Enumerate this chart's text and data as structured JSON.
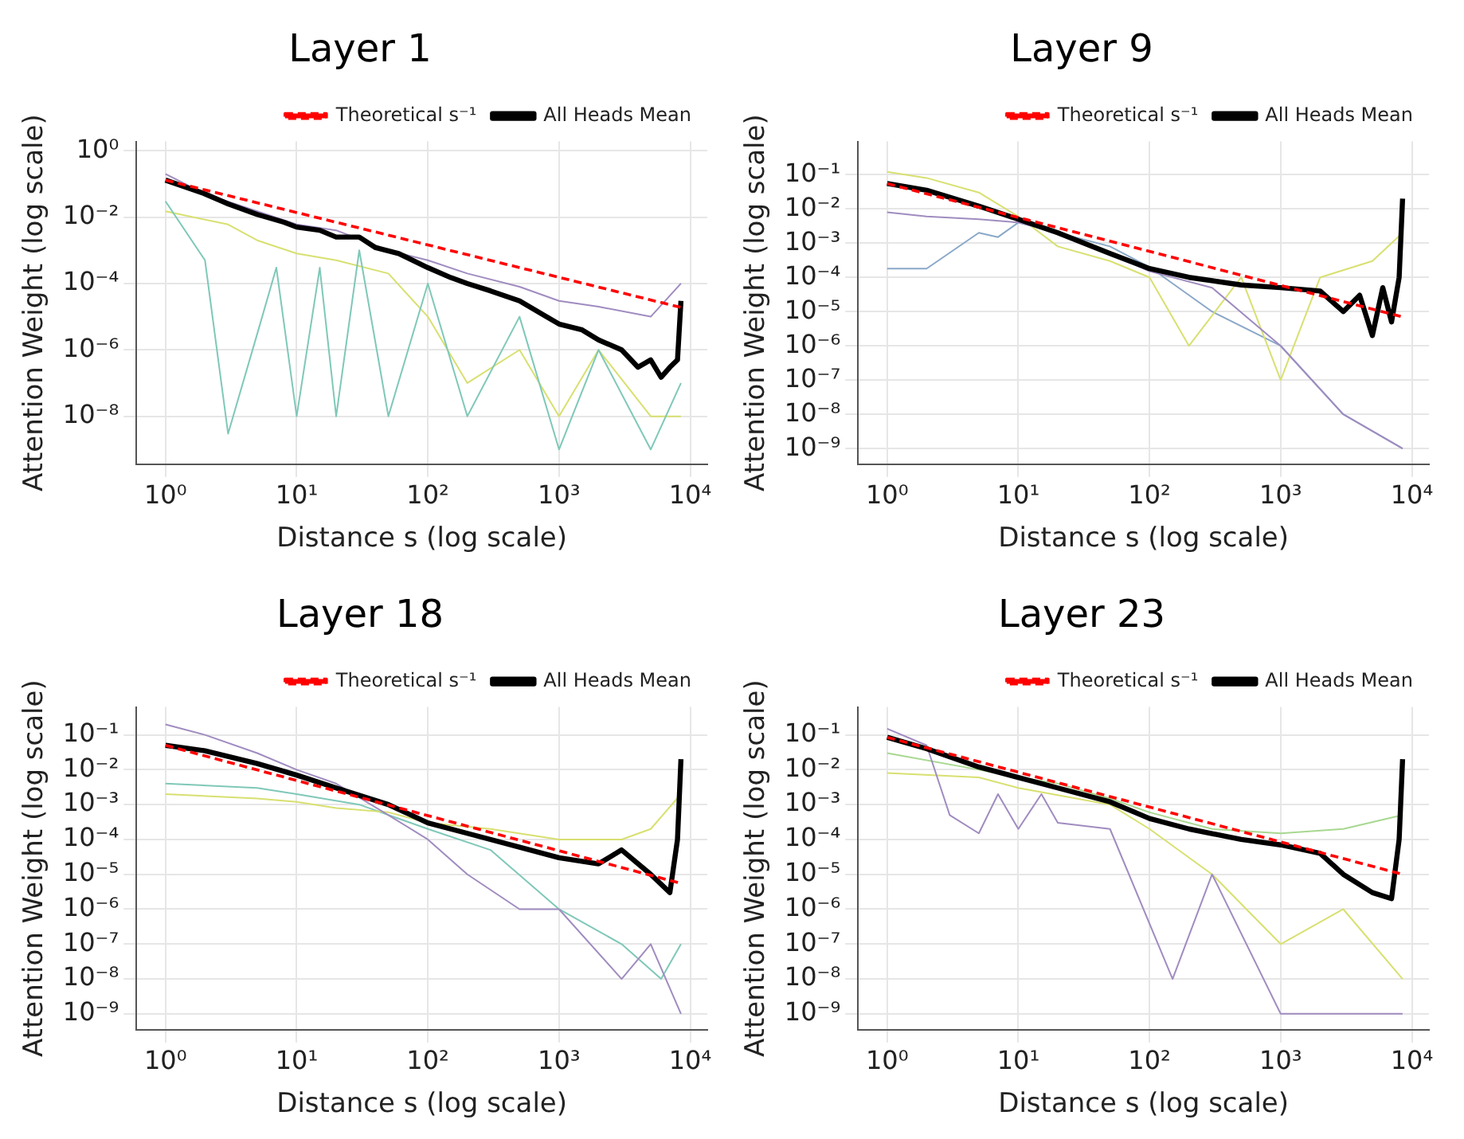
{
  "chart_data": [
    {
      "type": "line",
      "title": "Layer 1",
      "xlabel": "Distance s (log scale)",
      "ylabel": "Attention Weight (log scale)",
      "log": "xy",
      "grid": true,
      "legend": "top right",
      "xlim": [
        0.63,
        13500
      ],
      "xticks": [
        {
          "value": 1,
          "label": "10⁰"
        },
        {
          "value": 10,
          "label": "10¹"
        },
        {
          "value": 100,
          "label": "10²"
        },
        {
          "value": 1000,
          "label": "10³"
        },
        {
          "value": 10000,
          "label": "10⁴"
        }
      ],
      "ylim": [
        3.6e-10,
        1.9
      ],
      "yticks": [
        {
          "value": 1,
          "label": "10⁰"
        },
        {
          "value": 0.01,
          "label": "10⁻²"
        },
        {
          "value": 0.0001,
          "label": "10⁻⁴"
        },
        {
          "value": 1e-06,
          "label": "10⁻⁶"
        },
        {
          "value": 1e-08,
          "label": "10⁻⁸"
        }
      ],
      "series": [
        {
          "color": "#7fc8b8",
          "x": [
            1,
            2,
            3,
            5,
            7,
            10,
            15,
            20,
            30,
            50,
            100,
            200,
            500,
            1000,
            2000,
            5000,
            8500
          ],
          "values": [
            0.03,
            0.0005,
            3e-09,
            3e-06,
            0.0003,
            1e-08,
            0.0003,
            1e-08,
            0.001,
            1e-08,
            0.0001,
            1e-08,
            1e-05,
            1e-09,
            1e-06,
            1e-09,
            1e-07
          ]
        },
        {
          "color": "#d8e070",
          "x": [
            1,
            3,
            5,
            10,
            20,
            50,
            100,
            200,
            500,
            1000,
            2000,
            5000,
            8500
          ],
          "values": [
            0.015,
            0.006,
            0.002,
            0.0008,
            0.0005,
            0.0002,
            1e-05,
            1e-07,
            1e-06,
            1e-08,
            1e-06,
            1e-08,
            1e-08
          ]
        },
        {
          "color": "#a08cc0",
          "x": [
            1,
            2,
            5,
            10,
            20,
            50,
            100,
            200,
            500,
            1000,
            2000,
            5000,
            8500
          ],
          "values": [
            0.2,
            0.05,
            0.015,
            0.006,
            0.004,
            0.001,
            0.0005,
            0.0002,
            8e-05,
            3e-05,
            2e-05,
            1e-05,
            0.0001
          ]
        },
        {
          "name": "All Heads Mean",
          "color": "#000000",
          "line_style": "solid",
          "x": [
            1,
            2,
            3,
            5,
            8,
            10,
            15,
            20,
            30,
            40,
            60,
            100,
            150,
            200,
            300,
            500,
            800,
            1000,
            1500,
            2000,
            3000,
            4000,
            5000,
            6000,
            7000,
            8000,
            8500
          ],
          "values": [
            0.13,
            0.05,
            0.025,
            0.012,
            0.007,
            0.005,
            0.004,
            0.0025,
            0.0025,
            0.0012,
            0.0008,
            0.0003,
            0.00015,
            0.0001,
            6e-05,
            3e-05,
            1e-05,
            6e-06,
            4e-06,
            2e-06,
            1e-06,
            3e-07,
            5e-07,
            1.5e-07,
            3e-07,
            5e-07,
            3e-05
          ]
        },
        {
          "name": "Theoretical s⁻¹",
          "color": "#ff0000",
          "line_style": "dashed",
          "x": [
            1,
            8500
          ],
          "values": [
            0.13,
            1.9e-05
          ]
        }
      ]
    },
    {
      "type": "line",
      "title": "Layer 9",
      "xlabel": "Distance s (log scale)",
      "ylabel": "Attention Weight (log scale)",
      "log": "xy",
      "grid": true,
      "legend": "top right",
      "xlim": [
        0.63,
        13500
      ],
      "xticks": [
        {
          "value": 1,
          "label": "10⁰"
        },
        {
          "value": 10,
          "label": "10¹"
        },
        {
          "value": 100,
          "label": "10²"
        },
        {
          "value": 1000,
          "label": "10³"
        },
        {
          "value": 10000,
          "label": "10⁴"
        }
      ],
      "ylim": [
        3.5e-10,
        0.93
      ],
      "yticks": [
        {
          "value": 0.1,
          "label": "10⁻¹"
        },
        {
          "value": 0.01,
          "label": "10⁻²"
        },
        {
          "value": 0.001,
          "label": "10⁻³"
        },
        {
          "value": 0.0001,
          "label": "10⁻⁴"
        },
        {
          "value": 1e-05,
          "label": "10⁻⁵"
        },
        {
          "value": 1e-06,
          "label": "10⁻⁶"
        },
        {
          "value": 1e-07,
          "label": "10⁻⁷"
        },
        {
          "value": 1e-08,
          "label": "10⁻⁸"
        },
        {
          "value": 1e-09,
          "label": "10⁻⁹"
        }
      ],
      "series": [
        {
          "color": "#a08cc0",
          "x": [
            1,
            2,
            5,
            10,
            20,
            50,
            100,
            300,
            1000,
            3000,
            8500
          ],
          "values": [
            0.008,
            0.006,
            0.005,
            0.004,
            0.002,
            0.0005,
            0.00015,
            5e-05,
            1e-06,
            1e-08,
            1e-09
          ]
        },
        {
          "color": "#d8e070",
          "x": [
            1,
            2,
            5,
            10,
            20,
            50,
            100,
            200,
            500,
            1000,
            2000,
            5000,
            8500
          ],
          "values": [
            0.12,
            0.08,
            0.03,
            0.006,
            0.0008,
            0.0003,
            0.0001,
            1e-06,
            0.0001,
            1e-07,
            0.0001,
            0.0003,
            0.002
          ]
        },
        {
          "color": "#8aa8c8",
          "x": [
            1,
            2,
            5,
            7,
            10,
            20,
            50,
            100,
            300,
            1000,
            3000,
            8500
          ],
          "values": [
            0.00018,
            0.00018,
            0.002,
            0.0015,
            0.004,
            0.002,
            0.0008,
            0.0002,
            1e-05,
            1e-06,
            1e-08,
            1e-09
          ]
        },
        {
          "name": "All Heads Mean",
          "color": "#000000",
          "line_style": "solid",
          "x": [
            1,
            2,
            5,
            10,
            20,
            50,
            100,
            200,
            500,
            1000,
            2000,
            3000,
            4000,
            5000,
            6000,
            7000,
            8000,
            8500
          ],
          "values": [
            0.055,
            0.035,
            0.012,
            0.005,
            0.002,
            0.0005,
            0.00018,
            0.0001,
            6e-05,
            5e-05,
            4e-05,
            1e-05,
            3e-05,
            2e-06,
            5e-05,
            5e-06,
            0.0001,
            0.02
          ]
        },
        {
          "name": "Theoretical s⁻¹",
          "color": "#ff0000",
          "line_style": "dashed",
          "x": [
            1,
            8500
          ],
          "values": [
            0.055,
            7e-06
          ]
        }
      ]
    },
    {
      "type": "line",
      "title": "Layer 18",
      "xlabel": "Distance s (log scale)",
      "ylabel": "Attention Weight (log scale)",
      "log": "xy",
      "grid": true,
      "legend": "top right",
      "xlim": [
        0.63,
        13500
      ],
      "xticks": [
        {
          "value": 1,
          "label": "10⁰"
        },
        {
          "value": 10,
          "label": "10¹"
        },
        {
          "value": 100,
          "label": "10²"
        },
        {
          "value": 1000,
          "label": "10³"
        },
        {
          "value": 10000,
          "label": "10⁴"
        }
      ],
      "ylim": [
        3.5e-10,
        0.63
      ],
      "yticks": [
        {
          "value": 0.1,
          "label": "10⁻¹"
        },
        {
          "value": 0.01,
          "label": "10⁻²"
        },
        {
          "value": 0.001,
          "label": "10⁻³"
        },
        {
          "value": 0.0001,
          "label": "10⁻⁴"
        },
        {
          "value": 1e-05,
          "label": "10⁻⁵"
        },
        {
          "value": 1e-06,
          "label": "10⁻⁶"
        },
        {
          "value": 1e-07,
          "label": "10⁻⁷"
        },
        {
          "value": 1e-08,
          "label": "10⁻⁸"
        },
        {
          "value": 1e-09,
          "label": "10⁻⁹"
        }
      ],
      "series": [
        {
          "color": "#a08cc0",
          "x": [
            1,
            2,
            5,
            10,
            20,
            50,
            100,
            200,
            500,
            1000,
            3000,
            5000,
            8500
          ],
          "values": [
            0.2,
            0.1,
            0.03,
            0.01,
            0.004,
            0.0005,
            0.0001,
            1e-05,
            1e-06,
            1e-06,
            1e-08,
            1e-07,
            1e-09
          ]
        },
        {
          "color": "#d8e070",
          "x": [
            1,
            5,
            10,
            20,
            50,
            100,
            300,
            1000,
            3000,
            5000,
            8500
          ],
          "values": [
            0.002,
            0.0015,
            0.0012,
            0.0008,
            0.0006,
            0.0003,
            0.0002,
            0.0001,
            0.0001,
            0.0002,
            0.002
          ]
        },
        {
          "color": "#7fc8b8",
          "x": [
            1,
            5,
            10,
            30,
            100,
            300,
            1000,
            3000,
            6000,
            8500
          ],
          "values": [
            0.004,
            0.003,
            0.002,
            0.001,
            0.0002,
            5e-05,
            1e-06,
            1e-07,
            1e-08,
            1e-07
          ]
        },
        {
          "name": "All Heads Mean",
          "color": "#000000",
          "line_style": "solid",
          "x": [
            1,
            2,
            5,
            10,
            20,
            50,
            100,
            200,
            500,
            1000,
            2000,
            3000,
            5000,
            7000,
            8000,
            8500
          ],
          "values": [
            0.05,
            0.035,
            0.015,
            0.007,
            0.003,
            0.001,
            0.0003,
            0.00015,
            6e-05,
            3e-05,
            2e-05,
            5e-05,
            1e-05,
            3e-06,
            0.0001,
            0.02
          ]
        },
        {
          "name": "Theoretical s⁻¹",
          "color": "#ff0000",
          "line_style": "dashed",
          "x": [
            1,
            8500
          ],
          "values": [
            0.05,
            5.5e-06
          ]
        }
      ]
    },
    {
      "type": "line",
      "title": "Layer 23",
      "xlabel": "Distance s (log scale)",
      "ylabel": "Attention Weight (log scale)",
      "log": "xy",
      "grid": true,
      "legend": "top right",
      "xlim": [
        0.63,
        13500
      ],
      "xticks": [
        {
          "value": 1,
          "label": "10⁰"
        },
        {
          "value": 10,
          "label": "10¹"
        },
        {
          "value": 100,
          "label": "10²"
        },
        {
          "value": 1000,
          "label": "10³"
        },
        {
          "value": 10000,
          "label": "10⁴"
        }
      ],
      "ylim": [
        3.5e-10,
        0.63
      ],
      "yticks": [
        {
          "value": 0.1,
          "label": "10⁻¹"
        },
        {
          "value": 0.01,
          "label": "10⁻²"
        },
        {
          "value": 0.001,
          "label": "10⁻³"
        },
        {
          "value": 0.0001,
          "label": "10⁻⁴"
        },
        {
          "value": 1e-05,
          "label": "10⁻⁵"
        },
        {
          "value": 1e-06,
          "label": "10⁻⁶"
        },
        {
          "value": 1e-07,
          "label": "10⁻⁷"
        },
        {
          "value": 1e-08,
          "label": "10⁻⁸"
        },
        {
          "value": 1e-09,
          "label": "10⁻⁹"
        }
      ],
      "series": [
        {
          "color": "#a08cc0",
          "x": [
            1,
            2,
            3,
            5,
            7,
            10,
            15,
            20,
            50,
            150,
            300,
            1000,
            3000,
            8500
          ],
          "values": [
            0.15,
            0.05,
            0.0005,
            0.00015,
            0.002,
            0.0002,
            0.002,
            0.0003,
            0.0002,
            1e-08,
            1e-05,
            1e-09,
            1e-09,
            1e-09
          ]
        },
        {
          "color": "#a8d890",
          "x": [
            1,
            5,
            10,
            20,
            50,
            100,
            300,
            1000,
            3000,
            8500
          ],
          "values": [
            0.03,
            0.01,
            0.006,
            0.004,
            0.0015,
            0.0006,
            0.0002,
            0.00015,
            0.0002,
            0.0005
          ]
        },
        {
          "color": "#d8e070",
          "x": [
            1,
            5,
            10,
            50,
            100,
            300,
            1000,
            3000,
            8500
          ],
          "values": [
            0.008,
            0.006,
            0.003,
            0.001,
            0.0002,
            1e-05,
            1e-07,
            1e-06,
            1e-08
          ]
        },
        {
          "name": "All Heads Mean",
          "color": "#000000",
          "line_style": "solid",
          "x": [
            1,
            2,
            5,
            10,
            20,
            50,
            100,
            200,
            500,
            1000,
            2000,
            3000,
            5000,
            7000,
            8000,
            8500
          ],
          "values": [
            0.085,
            0.04,
            0.012,
            0.006,
            0.003,
            0.0012,
            0.0004,
            0.0002,
            0.0001,
            7e-05,
            4e-05,
            1e-05,
            3e-06,
            2e-06,
            0.0001,
            0.02
          ]
        },
        {
          "name": "Theoretical s⁻¹",
          "color": "#ff0000",
          "line_style": "dashed",
          "x": [
            1,
            8500
          ],
          "values": [
            0.085,
            1e-05
          ]
        }
      ]
    }
  ]
}
